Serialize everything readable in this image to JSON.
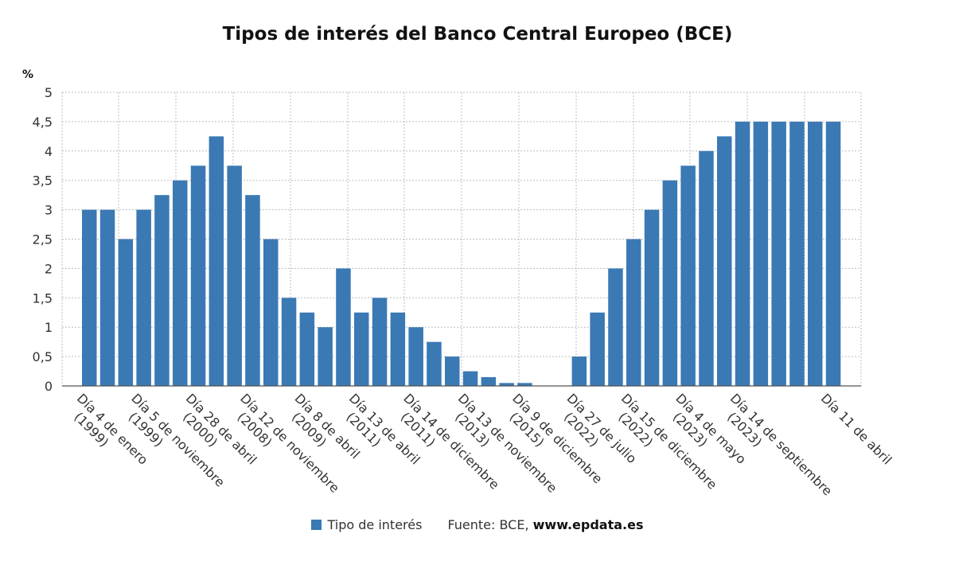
{
  "chart_data": {
    "type": "bar",
    "title": "Tipos de interés del Banco Central Europeo (BCE)",
    "ylabel": "%",
    "ylim": [
      0,
      5
    ],
    "yticks": [
      "0",
      "0,5",
      "1",
      "1,5",
      "2",
      "2,5",
      "3",
      "3,5",
      "4",
      "4,5",
      "5"
    ],
    "grid": true,
    "bar_color": "#3a79b4",
    "series": [
      {
        "name": "Tipo de interés",
        "values": [
          3,
          3,
          2.5,
          3,
          3.25,
          3.5,
          3.75,
          4.25,
          3.75,
          3.25,
          2.5,
          1.5,
          1.25,
          1,
          2,
          1.25,
          1.5,
          1.25,
          1,
          0.75,
          0.5,
          0.25,
          0.15,
          0.05,
          0.05,
          0,
          0,
          0.5,
          1.25,
          2,
          2.5,
          3,
          3.5,
          3.75,
          4,
          4.25,
          4.5,
          4.5,
          4.5,
          4.5,
          4.5,
          4.5
        ]
      }
    ],
    "x_tick_labels": [
      {
        "index": 0,
        "lines": [
          "Día 4 de enero",
          "(1999)"
        ]
      },
      {
        "index": 3,
        "lines": [
          "Día 5 de noviembre",
          "(1999)"
        ]
      },
      {
        "index": 6,
        "lines": [
          "Día 28 de abril",
          "(2000)"
        ]
      },
      {
        "index": 9,
        "lines": [
          "Día 12 de noviembre",
          "(2008)"
        ]
      },
      {
        "index": 12,
        "lines": [
          "Día 8 de abril",
          "(2009)"
        ]
      },
      {
        "index": 15,
        "lines": [
          "Día 13 de abril",
          "(2011)"
        ]
      },
      {
        "index": 18,
        "lines": [
          "Día 14 de diciembre",
          "(2011)"
        ]
      },
      {
        "index": 21,
        "lines": [
          "Día 13 de noviembre",
          "(2013)"
        ]
      },
      {
        "index": 24,
        "lines": [
          "Día 9 de diciembre",
          "(2015)"
        ]
      },
      {
        "index": 27,
        "lines": [
          "Día 27 de julio",
          "(2022)"
        ]
      },
      {
        "index": 30,
        "lines": [
          "Día 15 de diciembre",
          "(2022)"
        ]
      },
      {
        "index": 33,
        "lines": [
          "Día 4 de mayo",
          "(2023)"
        ]
      },
      {
        "index": 36,
        "lines": [
          "Día 14 de septiembre",
          "(2023)"
        ]
      },
      {
        "index": 41,
        "lines": [
          "Día 11 de abril"
        ]
      }
    ]
  },
  "legend": {
    "series_label": "Tipo de interés",
    "source_prefix": "Fuente: BCE, ",
    "source_site": "www.epdata.es"
  }
}
